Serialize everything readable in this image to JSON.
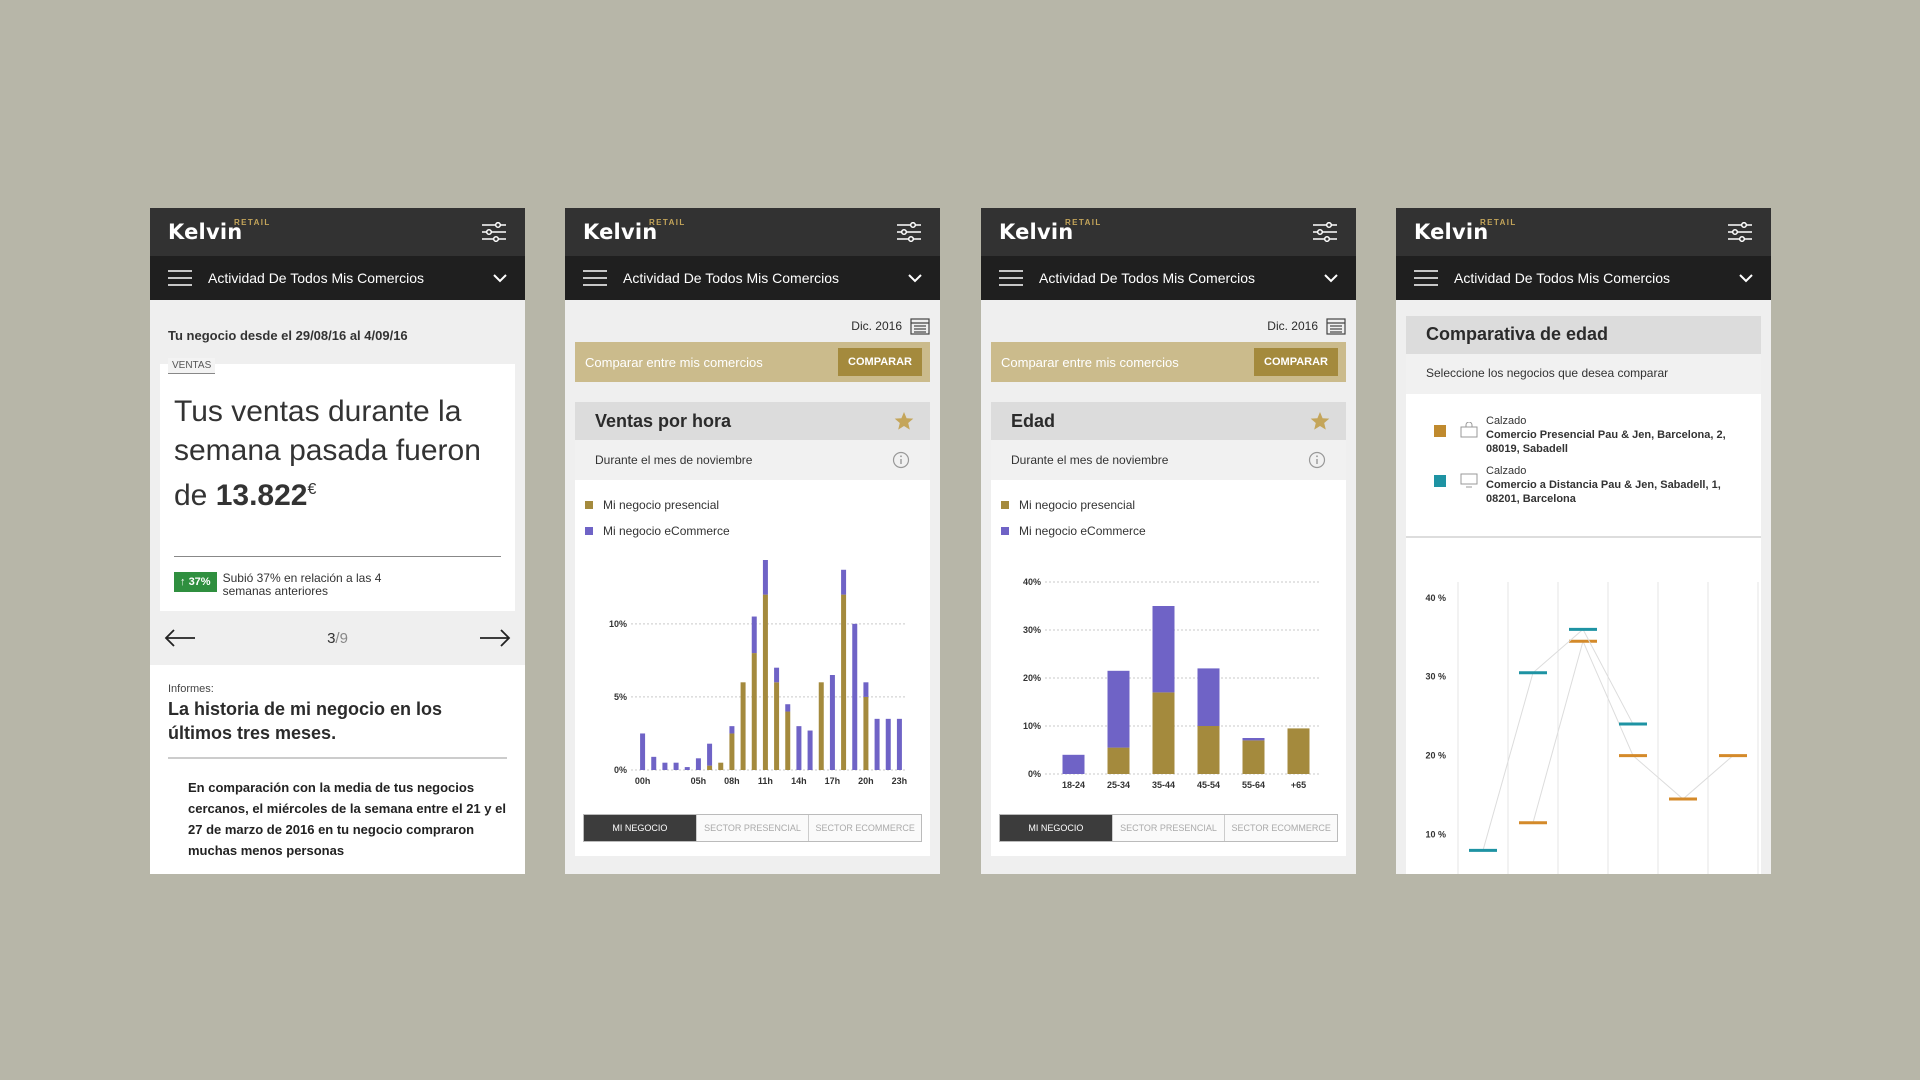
{
  "brand": {
    "name": "Kelvin",
    "sup": "RETAIL"
  },
  "nav_title": "Actividad De Todos Mis Comercios",
  "colors": {
    "gold": "#a48a3d",
    "purple": "#6f63c6",
    "teal": "#1e93a3",
    "orange": "#d48a2a",
    "green": "#2f8f3f"
  },
  "screen1": {
    "range": "Tu negocio desde el 29/08/16 al 4/09/16",
    "tag": "VENTAS",
    "headline_pre": "Tus ventas durante la semana pasada fueron de",
    "amount": "13.822",
    "currency": "€",
    "badge": "37%",
    "trend_text": "Subió 37% en relación a las 4 semanas anteriores",
    "page_current": "3",
    "page_total": "/9",
    "report_label": "Informes:",
    "report_title": "La historia de mi negocio en los últimos tres meses.",
    "report_body": "En comparación con la media de tus negocios cercanos, el miércoles de la semana entre el 21 y el 27 de marzo de 2016 en tu negocio compraron muchas menos personas"
  },
  "screen2": {
    "date": "Dic. 2016",
    "compare_label": "Comparar entre mis comercios",
    "compare_btn": "COMPARAR",
    "title": "Ventas por hora",
    "subtitle": "Durante el mes de noviembre",
    "legend": [
      "Mi negocio presencial",
      "Mi negocio eCommerce"
    ],
    "tabs": [
      "MI NEGOCIO",
      "SECTOR PRESENCIAL",
      "SECTOR ECOMMERCE"
    ]
  },
  "screen3": {
    "date": "Dic. 2016",
    "compare_label": "Comparar entre mis comercios",
    "compare_btn": "COMPARAR",
    "title": "Edad",
    "subtitle": "Durante el mes de noviembre",
    "legend": [
      "Mi negocio presencial",
      "Mi negocio eCommerce"
    ],
    "tabs": [
      "MI NEGOCIO",
      "SECTOR PRESENCIAL",
      "SECTOR ECOMMERCE"
    ]
  },
  "screen4": {
    "title": "Comparativa de edad",
    "subtitle": "Seleccione los negocios que desea comparar",
    "businesses": [
      {
        "category": "Calzado",
        "name": "Comercio Presencial Pau & Jen, Barcelona, 2, 08019, Sabadell"
      },
      {
        "category": "Calzado",
        "name": "Comercio a Distancia Pau & Jen, Sabadell, 1, 08201, Barcelona"
      }
    ]
  },
  "chart_data": [
    {
      "type": "bar",
      "stacked": true,
      "categories": [
        "00h",
        "01h",
        "02h",
        "03h",
        "04h",
        "05h",
        "06h",
        "07h",
        "08h",
        "09h",
        "10h",
        "11h",
        "12h",
        "13h",
        "14h",
        "15h",
        "16h",
        "17h",
        "18h",
        "19h",
        "20h",
        "21h",
        "22h",
        "23h"
      ],
      "tick_labels": [
        "00h",
        "05h",
        "08h",
        "11h",
        "14h",
        "17h",
        "20h",
        "23h"
      ],
      "series": [
        {
          "name": "Mi negocio presencial",
          "values": [
            0,
            0,
            0,
            0,
            0,
            0,
            0.3,
            0.5,
            2.5,
            6,
            8,
            12,
            6,
            4,
            0,
            0,
            6,
            0,
            12,
            0,
            5,
            0,
            0,
            0
          ]
        },
        {
          "name": "Mi negocio eCommerce",
          "values": [
            2.5,
            0.9,
            0.5,
            0.5,
            0.2,
            0.8,
            1.5,
            0,
            0.5,
            0,
            2.5,
            2.7,
            1,
            0.5,
            3,
            2.7,
            0,
            6.5,
            1.7,
            10,
            1,
            3.5,
            3.5,
            3.5
          ]
        }
      ],
      "ylim": [
        0,
        13
      ],
      "yticks": [
        "0%",
        "5%",
        "10%"
      ]
    },
    {
      "type": "bar",
      "stacked": true,
      "categories": [
        "18-24",
        "25-34",
        "35-44",
        "45-54",
        "55-64",
        "+65"
      ],
      "series": [
        {
          "name": "Mi negocio presencial",
          "values": [
            0,
            5.5,
            17,
            10,
            7,
            9.5
          ]
        },
        {
          "name": "Mi negocio eCommerce",
          "values": [
            4,
            16,
            18,
            12,
            0.5,
            0
          ]
        }
      ],
      "ylim": [
        0,
        40
      ],
      "yticks": [
        "0%",
        "10%",
        "20%",
        "30%",
        "40%"
      ]
    },
    {
      "type": "line",
      "yticks": [
        "10 %",
        "20 %",
        "30 %",
        "40 %"
      ],
      "series": [
        {
          "name": "Comercio Presencial Pau & Jen, Barcelona, 2, 08019, Sabadell",
          "values": [
            null,
            11.5,
            34.5,
            20,
            14.5,
            20
          ]
        },
        {
          "name": "Comercio a Distancia Pau & Jen, Sabadell, 1, 08201, Barcelona",
          "values": [
            8,
            30.5,
            36,
            24,
            null,
            null
          ]
        }
      ]
    }
  ]
}
